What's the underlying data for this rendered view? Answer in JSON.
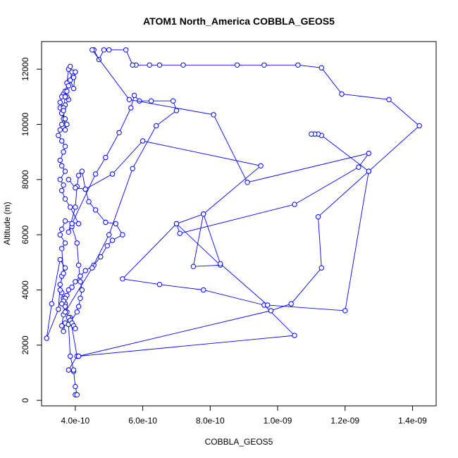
{
  "chart_data": {
    "type": "line",
    "title": "ATOM1 North_America COBBLA_GEOS5",
    "xlabel": "COBBLA_GEOS5",
    "ylabel": "Altitude (m)",
    "xlim": [
      3e-10,
      1.47e-09
    ],
    "ylim": [
      -200,
      13000
    ],
    "x_ticks": [
      4e-10,
      6e-10,
      8e-10,
      1e-09,
      1.2e-09,
      1.4e-09
    ],
    "x_tick_labels": [
      "4.0e-10",
      "6.0e-10",
      "8.0e-10",
      "1.0e-09",
      "1.2e-09",
      "1.4e-09"
    ],
    "y_ticks": [
      0,
      2000,
      4000,
      6000,
      8000,
      10000,
      12000
    ],
    "y_tick_labels": [
      "0",
      "2000",
      "4000",
      "6000",
      "8000",
      "10000",
      "12000"
    ],
    "grid": false,
    "legend": "none",
    "marker": "open-circle",
    "color": "#0000ff",
    "series": [
      {
        "x": [
          4e-10,
          4.05e-10,
          4e-10,
          3.95e-10,
          3.8e-10,
          4.05e-10,
          3.85e-10,
          3.7e-10,
          3.65e-10,
          3.6e-10,
          3.65e-10,
          3.7e-10,
          3.65e-10,
          3.6e-10,
          3.55e-10,
          3.6e-10,
          3.7e-10,
          3.55e-10,
          3.3e-10,
          3.15e-10,
          3.5e-10,
          3.55e-10,
          3.65e-10,
          3.6e-10,
          3.7e-10,
          3.55e-10,
          3.6e-10,
          3.7e-10,
          4.1e-10,
          3.85e-10,
          3.7e-10,
          3.6e-10,
          3.65e-10,
          3.55e-10,
          3.7e-10,
          3.6e-10,
          3.55e-10,
          3.65e-10,
          3.7e-10,
          3.6e-10,
          3.5e-10,
          3.55e-10,
          3.6e-10,
          3.65e-10,
          3.6e-10,
          3.55e-10,
          3.7e-10,
          3.8e-10,
          3.75e-10,
          3.65e-10,
          3.7e-10,
          3.6e-10,
          3.55e-10,
          3.65e-10,
          3.6e-10,
          3.7e-10,
          3.75e-10,
          3.7e-10,
          3.65e-10,
          3.7e-10,
          3.75e-10,
          3.8e-10,
          3.85e-10,
          3.9e-10,
          3.85e-10,
          3.95e-10,
          4e-10,
          3.95e-10,
          3.8e-10,
          3.75e-10,
          3.7e-10
        ],
        "y": [
          200,
          200,
          500,
          1050,
          1100,
          1600,
          3000,
          2800,
          2500,
          2700,
          3100,
          3500,
          3700,
          3900,
          4000,
          4500,
          4800,
          5100,
          3500,
          2250,
          3300,
          4200,
          4600,
          5500,
          5700,
          6000,
          6200,
          6500,
          6400,
          7000,
          7300,
          7600,
          7800,
          8000,
          8300,
          8500,
          8700,
          9000,
          9200,
          9400,
          9600,
          9800,
          10000,
          10200,
          10400,
          10600,
          10700,
          10900,
          11000,
          11100,
          11200,
          11000,
          10800,
          10600,
          10400,
          10200,
          10000,
          9800,
          10500,
          11000,
          11500,
          12000,
          12100,
          11900,
          11600,
          11300,
          11900,
          11700,
          11400,
          11200,
          11000
        ]
      },
      {
        "x": [
          3.95e-10,
          3.85e-10,
          3.8e-10,
          4.05e-10,
          4.1e-10,
          4.15e-10,
          4.2e-10,
          4.15e-10,
          4.1e-10,
          4.05e-10,
          3.9e-10,
          3.8e-10,
          4e-10,
          4.05e-10,
          4.1e-10,
          4.2e-10,
          4.3e-10,
          4.4e-10,
          4.6e-10,
          4.9e-10,
          5.2e-10,
          5.4e-10,
          5.1e-10,
          4.95e-10,
          4.75e-10,
          4.55e-10,
          4.3e-10,
          4.15e-10,
          4e-10,
          3.9e-10,
          3.8e-10,
          3.75e-10,
          3.7e-10,
          3.65e-10,
          3.6e-10,
          3.7e-10,
          3.75e-10,
          3.8e-10,
          3.85e-10,
          3.9e-10,
          3.95e-10,
          4e-10
        ],
        "y": [
          1100,
          1600,
          2750,
          3200,
          3400,
          3700,
          4000,
          4300,
          4900,
          5700,
          6300,
          6100,
          7000,
          7750,
          8150,
          8300,
          7650,
          7200,
          6900,
          6450,
          6400,
          6000,
          5800,
          5600,
          5200,
          4900,
          4700,
          4500,
          4300,
          4100,
          4000,
          3800,
          3700,
          3600,
          3500,
          3400,
          3200,
          3000,
          2900,
          2800,
          2700,
          2600
        ]
      },
      {
        "x": [
          4.1e-10,
          1.05e-09,
          9.6e-10,
          7.8e-10,
          6.5e-10,
          5.4e-10,
          7e-10,
          8.3e-10,
          7.5e-10,
          7.8e-10,
          9.5e-10,
          6e-10,
          5.1e-10,
          4.3e-10,
          4e-10,
          3.8e-10
        ],
        "y": [
          1600,
          2350,
          3450,
          4000,
          4200,
          4400,
          6400,
          4900,
          4850,
          6750,
          8500,
          9400,
          8200,
          7650,
          7700,
          8000
        ]
      },
      {
        "x": [
          3.7e-10,
          4.5e-10,
          5e-10,
          5.7e-10,
          6.4e-10,
          7e-10,
          6.9e-10,
          6.25e-10,
          5.9e-10,
          5.75e-10,
          5.65e-10,
          5.3e-10,
          4.9e-10,
          4.6e-10,
          3.9e-10
        ],
        "y": [
          3200,
          4800,
          6000,
          8400,
          9950,
          10500,
          10850,
          10850,
          10850,
          11050,
          10600,
          9700,
          8800,
          8200,
          6400
        ]
      },
      {
        "x": [
          4.1e-10,
          9.8e-10,
          1.04e-09,
          1.13e-09,
          1.12e-09,
          1.27e-09,
          1.42e-09,
          1.33e-09,
          1.19e-09,
          1.13e-09,
          1.06e-09,
          9.6e-10,
          8.8e-10,
          7.2e-10,
          6.5e-10,
          6.2e-10,
          5.8e-10,
          5.7e-10,
          5.5e-10,
          5e-10,
          4.85e-10,
          4.7e-10,
          4.55e-10
        ],
        "y": [
          1600,
          3250,
          3500,
          4800,
          6650,
          8300,
          9950,
          10900,
          11100,
          12050,
          12150,
          12150,
          12150,
          12150,
          12150,
          12150,
          12150,
          12150,
          12700,
          12700,
          12700,
          12350,
          12700
        ]
      },
      {
        "x": [
          4.5e-10,
          5.6e-10,
          8.1e-10,
          9.1e-10,
          1.27e-09,
          1.24e-09,
          1.05e-09,
          7.1e-10,
          7e-10,
          7.8e-10,
          8.3e-10,
          9.7e-10,
          1.2e-09,
          1.27e-09,
          1.13e-09,
          1.12e-09,
          1.11e-09,
          1.1e-09
        ],
        "y": [
          12700,
          10900,
          10350,
          7900,
          8950,
          8450,
          7100,
          6050,
          6400,
          6750,
          4950,
          3450,
          3250,
          8300,
          9600,
          9650,
          9650,
          9650
        ]
      }
    ]
  }
}
